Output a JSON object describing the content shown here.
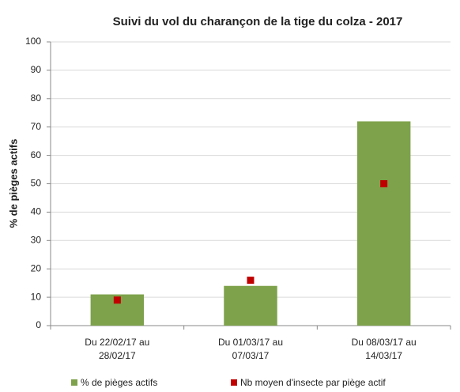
{
  "chart_data": {
    "type": "bar",
    "title": "Suivi du vol du charançon de la tige du colza - 2017",
    "y_label": "% de pièges actifs",
    "categories": [
      [
        "Du 22/02/17 au",
        "28/02/17"
      ],
      [
        "Du 01/03/17 au",
        "07/03/17"
      ],
      [
        "Du 08/03/17 au",
        "14/03/17"
      ]
    ],
    "series": [
      {
        "name": "% de pièges actifs",
        "type": "bar",
        "color": "#7ea24b",
        "values": [
          11,
          14,
          72
        ]
      },
      {
        "name": "Nb moyen d'insecte par piège actif",
        "type": "scatter",
        "color": "#c00000",
        "values": [
          9,
          16,
          50
        ]
      }
    ],
    "ylim": [
      0,
      100
    ],
    "yticks": [
      0,
      10,
      20,
      30,
      40,
      50,
      60,
      70,
      80,
      90,
      100
    ],
    "grid": true,
    "legend": "bottom"
  }
}
